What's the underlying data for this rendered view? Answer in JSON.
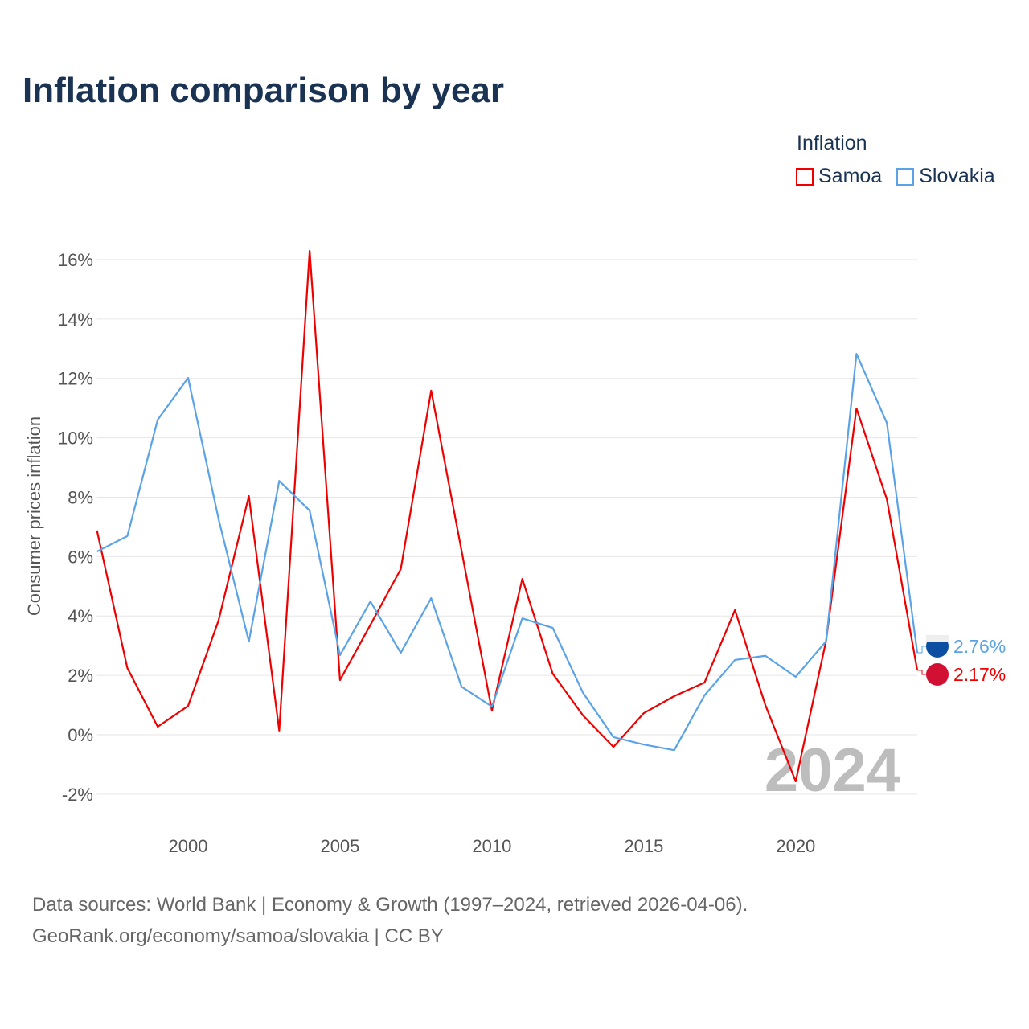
{
  "chart_data": {
    "type": "line",
    "title": "Inflation comparison by year",
    "ylabel": "Consumer prices inflation",
    "xlabel": "",
    "legend_title": "Inflation",
    "legend_position": "top-right",
    "year_watermark": "2024",
    "x": [
      1997,
      1998,
      1999,
      2000,
      2001,
      2002,
      2003,
      2004,
      2005,
      2006,
      2007,
      2008,
      2009,
      2010,
      2011,
      2012,
      2013,
      2014,
      2015,
      2016,
      2017,
      2018,
      2019,
      2020,
      2021,
      2022,
      2023,
      2024
    ],
    "xlim": [
      1997,
      2024
    ],
    "ylim": [
      -2.5,
      16.5
    ],
    "x_ticks": [
      2000,
      2005,
      2010,
      2015,
      2020
    ],
    "x_tick_labels": [
      "2000",
      "2005",
      "2010",
      "2015",
      "2020"
    ],
    "y_ticks": [
      -2,
      0,
      2,
      4,
      6,
      8,
      10,
      12,
      14,
      16
    ],
    "y_tick_labels": [
      "-2%",
      "0%",
      "2%",
      "4%",
      "6%",
      "8%",
      "10%",
      "12%",
      "14%",
      "16%"
    ],
    "grid": true,
    "series": [
      {
        "name": "Samoa",
        "color": "#ee0000",
        "end_label": "2.17%",
        "values": [
          6.88,
          2.25,
          0.27,
          0.97,
          3.84,
          8.04,
          0.14,
          16.3,
          1.84,
          3.7,
          5.58,
          11.59,
          6.2,
          0.81,
          5.25,
          2.06,
          0.65,
          -0.41,
          0.73,
          1.3,
          1.76,
          4.2,
          1.0,
          -1.57,
          3.17,
          10.99,
          7.93,
          2.17
        ]
      },
      {
        "name": "Slovakia",
        "color": "#5ba3e6",
        "end_label": "2.76%",
        "values": [
          6.17,
          6.69,
          10.61,
          12.02,
          7.28,
          3.14,
          8.55,
          7.55,
          2.68,
          4.49,
          2.76,
          4.6,
          1.62,
          0.95,
          3.92,
          3.6,
          1.41,
          -0.08,
          -0.33,
          -0.52,
          1.33,
          2.52,
          2.66,
          1.95,
          3.15,
          12.83,
          10.5,
          2.76
        ]
      }
    ]
  },
  "footer": {
    "line1": "Data sources: World Bank | Economy & Growth (1997–2024, retrieved 2026-04-06).",
    "line2": "GeoRank.org/economy/samoa/slovakia | CC BY"
  }
}
